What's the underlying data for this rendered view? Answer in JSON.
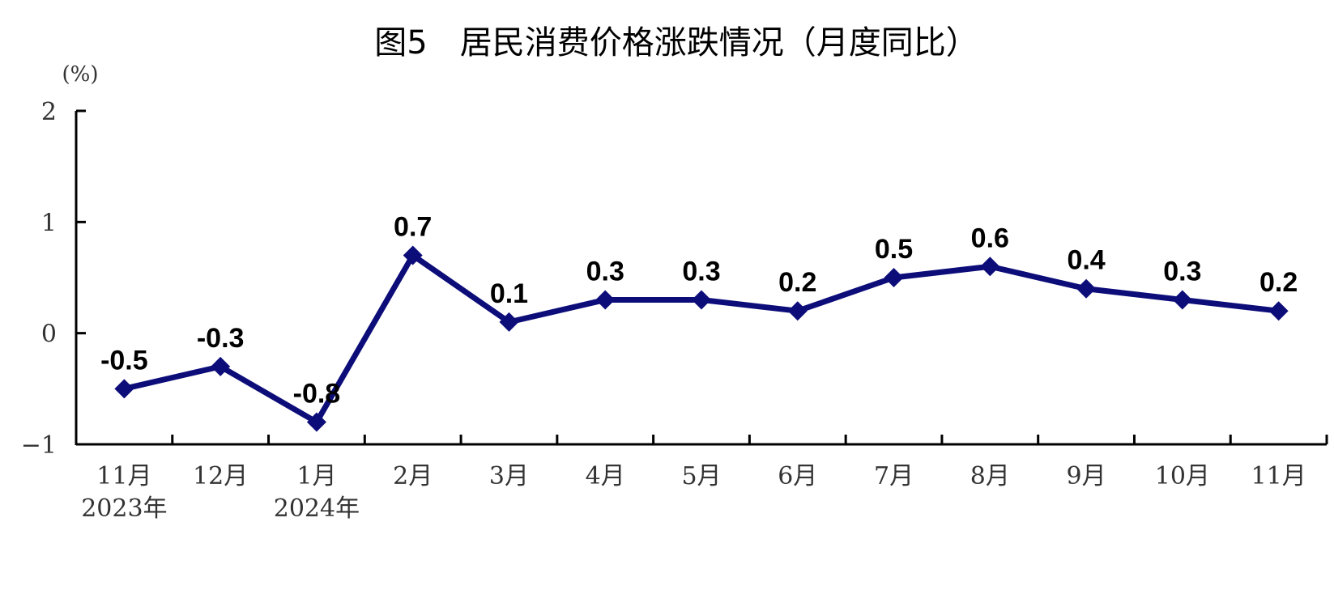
{
  "chart_data": {
    "type": "line",
    "title": "图5　居民消费价格涨跌情况（月度同比）",
    "y_unit": "(%)",
    "categories": [
      "11月",
      "12月",
      "1月",
      "2月",
      "3月",
      "4月",
      "5月",
      "6月",
      "7月",
      "8月",
      "9月",
      "10月",
      "11月"
    ],
    "year_labels": [
      "2023年",
      "",
      "2024年",
      "",
      "",
      "",
      "",
      "",
      "",
      "",
      "",
      "",
      ""
    ],
    "series": [
      {
        "values": [
          -0.5,
          -0.3,
          -0.8,
          0.7,
          0.1,
          0.3,
          0.3,
          0.2,
          0.5,
          0.6,
          0.4,
          0.3,
          0.2
        ],
        "data_labels": [
          "-0.5",
          "-0.3",
          "-0.8",
          "0.7",
          "0.1",
          "0.3",
          "0.3",
          "0.2",
          "0.5",
          "0.6",
          "0.4",
          "0.3",
          "0.2"
        ],
        "color": "#0d0d7a",
        "marker": "diamond"
      }
    ],
    "ylim": [
      -1,
      2
    ],
    "yticks": [
      "2",
      "1",
      "0",
      "−1"
    ],
    "ytick_values": [
      2,
      1,
      0,
      -1
    ],
    "grid": false,
    "legend": "none",
    "axis_color": "#000000"
  }
}
